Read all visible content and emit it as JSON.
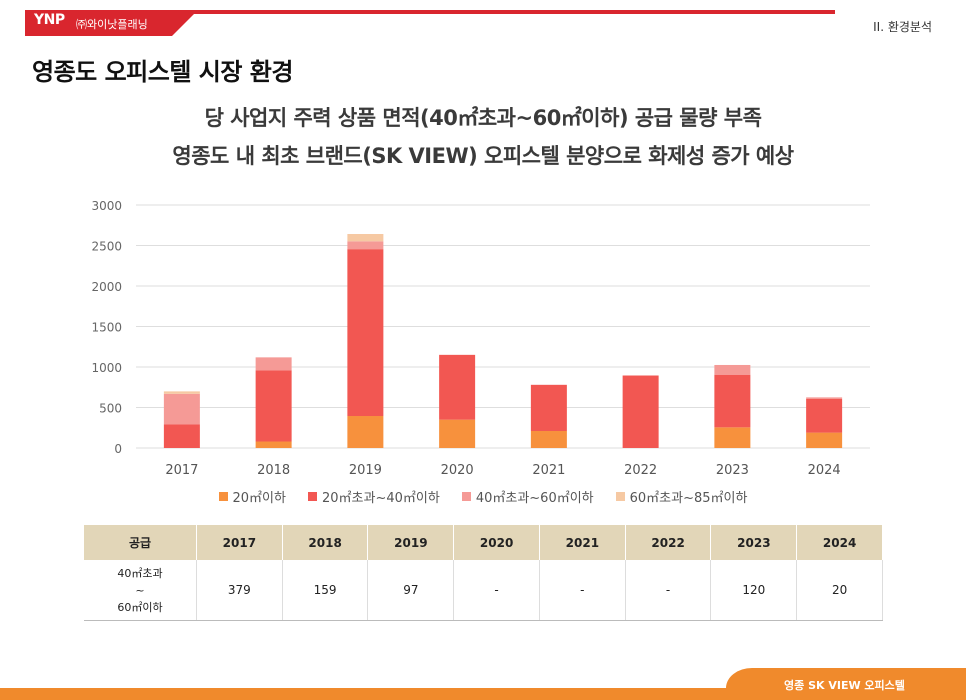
{
  "header": {
    "logo": "YNP",
    "company": "㈜와이낫플래닝",
    "section": "II. 환경분석",
    "brand_color": "#d9262e"
  },
  "page_title": "영종도 오피스텔 시장 환경",
  "headline": {
    "line1": "당 사업지 주력 상품 면적(40㎡초과~60㎡이하) 공급 물량 부족",
    "line2": "영종도 내 최초 브랜드(SK VIEW) 오피스텔 분양으로 화제성 증가 예상"
  },
  "chart_data": {
    "type": "bar",
    "stacked": true,
    "categories": [
      "2017",
      "2018",
      "2019",
      "2020",
      "2021",
      "2022",
      "2023",
      "2024"
    ],
    "series": [
      {
        "name": "20㎡이하",
        "color": "#f7913d",
        "values": [
          0,
          80,
          395,
          350,
          210,
          0,
          255,
          190
        ]
      },
      {
        "name": "20㎡초과~40㎡이하",
        "color": "#f25752",
        "values": [
          290,
          880,
          2060,
          800,
          570,
          895,
          650,
          415
        ]
      },
      {
        "name": "40㎡초과~60㎡이하",
        "color": "#f59a96",
        "values": [
          379,
          159,
          97,
          0,
          0,
          0,
          120,
          20
        ]
      },
      {
        "name": "60㎡초과~85㎡이하",
        "color": "#f6c9a3",
        "values": [
          30,
          0,
          90,
          0,
          0,
          0,
          0,
          0
        ]
      }
    ],
    "yticks": [
      "0",
      "500",
      "1000",
      "1500",
      "2000",
      "2500",
      "3000"
    ],
    "ylim": [
      0,
      3000
    ],
    "grid": true,
    "legend_position": "bottom"
  },
  "table": {
    "header": [
      "공급",
      "2017",
      "2018",
      "2019",
      "2020",
      "2021",
      "2022",
      "2023",
      "2024"
    ],
    "row_label": [
      "40㎡초과",
      "~",
      "60㎡이하"
    ],
    "values": [
      "379",
      "159",
      "97",
      "-",
      "-",
      "-",
      "120",
      "20"
    ]
  },
  "footer": {
    "text": "영종 SK VIEW 오피스텔",
    "color": "#f08a2c"
  }
}
